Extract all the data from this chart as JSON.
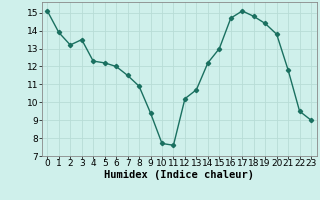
{
  "x": [
    0,
    1,
    2,
    3,
    4,
    5,
    6,
    7,
    8,
    9,
    10,
    11,
    12,
    13,
    14,
    15,
    16,
    17,
    18,
    19,
    20,
    21,
    22,
    23
  ],
  "y": [
    15.1,
    13.9,
    13.2,
    13.5,
    12.3,
    12.2,
    12.0,
    11.5,
    10.9,
    9.4,
    7.7,
    7.6,
    10.2,
    10.7,
    12.2,
    13.0,
    14.7,
    15.1,
    14.8,
    14.4,
    13.8,
    11.8,
    9.5,
    9.0
  ],
  "line_color": "#1a7060",
  "marker": "D",
  "marker_size": 2.2,
  "linewidth": 1.0,
  "bg_color": "#cff0eb",
  "grid_color": "#b8dcd6",
  "xlabel": "Humidex (Indice chaleur)",
  "xlim": [
    -0.5,
    23.5
  ],
  "ylim": [
    7,
    15.6
  ],
  "yticks": [
    7,
    8,
    9,
    10,
    11,
    12,
    13,
    14,
    15
  ],
  "xticks": [
    0,
    1,
    2,
    3,
    4,
    5,
    6,
    7,
    8,
    9,
    10,
    11,
    12,
    13,
    14,
    15,
    16,
    17,
    18,
    19,
    20,
    21,
    22,
    23
  ],
  "tick_fontsize": 6.5,
  "xlabel_fontsize": 7.5
}
